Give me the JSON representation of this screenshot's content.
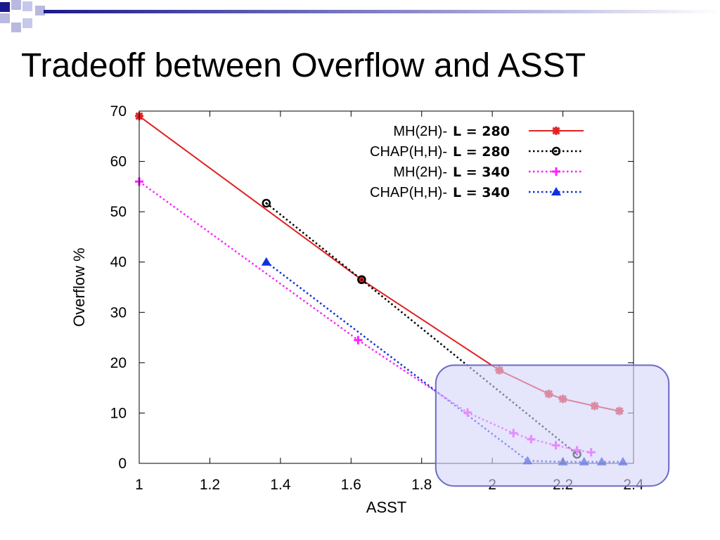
{
  "slide": {
    "title": "Tradeoff between Overflow and ASST"
  },
  "colors": {
    "deco_dark": "#1a1a8c",
    "deco_light": "#b8b8e0",
    "highlight_fill": "#d4d4fa",
    "highlight_stroke": "#6b6bc4"
  },
  "chart_data": {
    "type": "line",
    "xlabel": "ASST",
    "ylabel": "Overflow %",
    "xlim": [
      1,
      2.4
    ],
    "ylim": [
      0,
      70
    ],
    "xticks": [
      "1",
      "1.2",
      "1.4",
      "1.6",
      "1.8",
      "2",
      "2.2",
      "2.4"
    ],
    "yticks": [
      "0",
      "10",
      "20",
      "30",
      "40",
      "50",
      "60",
      "70"
    ],
    "grid": false,
    "legend_position": "top-right",
    "highlight_region": {
      "x": [
        1.84,
        2.5
      ],
      "y": [
        -4.5,
        19.5
      ]
    },
    "series": [
      {
        "name": "MH(2H)-",
        "label_suffix": "L = 280",
        "color": "#e02020",
        "line_style": "solid",
        "marker": "asterisk",
        "x": [
          1.0,
          1.63,
          2.02,
          2.16,
          2.2,
          2.29,
          2.36
        ],
        "y": [
          69,
          36.5,
          18.5,
          13.8,
          12.8,
          11.4,
          10.4
        ]
      },
      {
        "name": "CHAP(H,H)-",
        "label_suffix": "L = 280",
        "color": "#000000",
        "line_style": "dotted",
        "marker": "circle",
        "x": [
          1.36,
          1.63,
          2.24
        ],
        "y": [
          51.7,
          36.5,
          1.8
        ]
      },
      {
        "name": "MH(2H)-",
        "label_suffix": "L = 340",
        "color": "#ff20ff",
        "line_style": "dotted",
        "marker": "plus",
        "x": [
          1.0,
          1.62,
          1.93,
          2.06,
          2.11,
          2.18,
          2.24,
          2.28
        ],
        "y": [
          56,
          24.5,
          10.1,
          6,
          4.8,
          3.6,
          2.6,
          2.2
        ]
      },
      {
        "name": "CHAP(H,H)-",
        "label_suffix": "L = 340",
        "color": "#1030e0",
        "line_style": "dotted",
        "marker": "triangle",
        "x": [
          1.36,
          2.1,
          2.2,
          2.26,
          2.31,
          2.37
        ],
        "y": [
          40,
          0.5,
          0.3,
          0.3,
          0.3,
          0.3
        ]
      }
    ]
  }
}
